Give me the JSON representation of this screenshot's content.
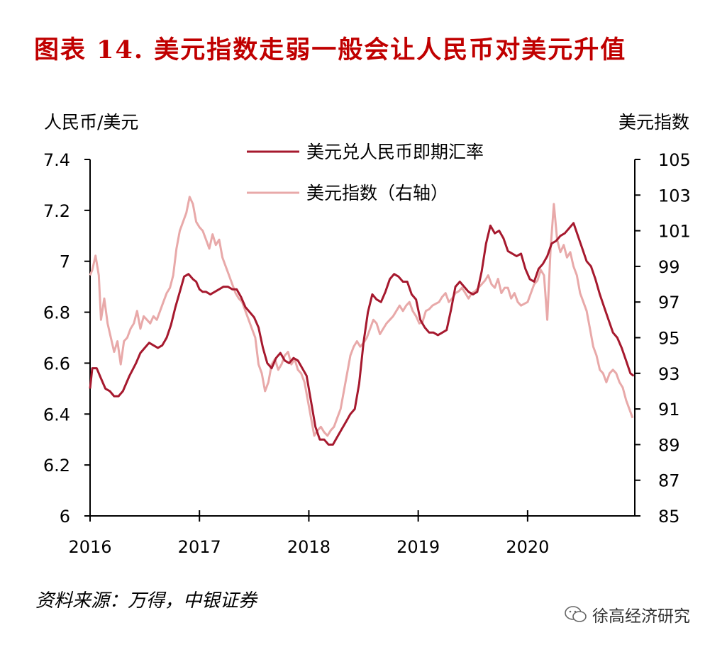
{
  "title": "图表 14.  美元指数走弱一般会让人民币对美元升值",
  "source": "资料来源：万得，中银证券",
  "brand": "徐高经济研究",
  "chart_data": {
    "type": "line",
    "ylabel_left": "人民币/美元",
    "ylabel_right": "美元指数",
    "ylim_left": [
      6,
      7.4
    ],
    "ylim_right": [
      85,
      105
    ],
    "yticks_left": [
      "7.4",
      "7.2",
      "7",
      "6.8",
      "6.6",
      "6.4",
      "6.2",
      "6"
    ],
    "yticks_right": [
      "105",
      "103",
      "101",
      "99",
      "97",
      "95",
      "93",
      "91",
      "89",
      "87",
      "85"
    ],
    "xlim": [
      2016.0,
      2020.98
    ],
    "xticks": [
      "2016",
      "2017",
      "2018",
      "2019",
      "2020"
    ],
    "grid": false,
    "legend_position": "top-center",
    "colors": {
      "cny": "#a6192e",
      "dxy": "#e8a9a9"
    },
    "series": [
      {
        "name": "美元兑人民币即期汇率",
        "axis": "left",
        "x": [
          2016.0,
          2016.02,
          2016.06,
          2016.1,
          2016.14,
          2016.18,
          2016.22,
          2016.26,
          2016.3,
          2016.36,
          2016.42,
          2016.46,
          2016.5,
          2016.54,
          2016.58,
          2016.62,
          2016.66,
          2016.7,
          2016.74,
          2016.78,
          2016.82,
          2016.86,
          2016.9,
          2016.94,
          2016.97,
          2017.0,
          2017.03,
          2017.06,
          2017.1,
          2017.14,
          2017.18,
          2017.22,
          2017.26,
          2017.3,
          2017.34,
          2017.38,
          2017.42,
          2017.46,
          2017.5,
          2017.54,
          2017.58,
          2017.62,
          2017.66,
          2017.7,
          2017.74,
          2017.78,
          2017.82,
          2017.86,
          2017.9,
          2017.94,
          2017.98,
          2018.02,
          2018.06,
          2018.1,
          2018.14,
          2018.18,
          2018.22,
          2018.26,
          2018.3,
          2018.34,
          2018.38,
          2018.42,
          2018.46,
          2018.5,
          2018.54,
          2018.58,
          2018.62,
          2018.66,
          2018.7,
          2018.74,
          2018.78,
          2018.82,
          2018.86,
          2018.9,
          2018.94,
          2018.98,
          2019.02,
          2019.06,
          2019.1,
          2019.14,
          2019.18,
          2019.22,
          2019.26,
          2019.3,
          2019.34,
          2019.38,
          2019.42,
          2019.46,
          2019.5,
          2019.54,
          2019.58,
          2019.62,
          2019.66,
          2019.7,
          2019.74,
          2019.78,
          2019.82,
          2019.86,
          2019.9,
          2019.94,
          2019.98,
          2020.02,
          2020.06,
          2020.1,
          2020.14,
          2020.18,
          2020.22,
          2020.26,
          2020.3,
          2020.34,
          2020.38,
          2020.42,
          2020.46,
          2020.5,
          2020.54,
          2020.58,
          2020.62,
          2020.66,
          2020.7,
          2020.74,
          2020.78,
          2020.82,
          2020.86,
          2020.9,
          2020.94,
          2020.97
        ],
        "values": [
          6.5,
          6.58,
          6.58,
          6.54,
          6.5,
          6.49,
          6.47,
          6.47,
          6.49,
          6.55,
          6.6,
          6.64,
          6.66,
          6.68,
          6.67,
          6.66,
          6.67,
          6.7,
          6.75,
          6.82,
          6.88,
          6.94,
          6.95,
          6.93,
          6.92,
          6.89,
          6.88,
          6.88,
          6.87,
          6.88,
          6.89,
          6.9,
          6.9,
          6.89,
          6.89,
          6.86,
          6.82,
          6.8,
          6.78,
          6.74,
          6.66,
          6.6,
          6.58,
          6.62,
          6.64,
          6.61,
          6.6,
          6.62,
          6.61,
          6.58,
          6.55,
          6.45,
          6.35,
          6.3,
          6.3,
          6.28,
          6.28,
          6.31,
          6.34,
          6.37,
          6.4,
          6.42,
          6.52,
          6.68,
          6.8,
          6.87,
          6.85,
          6.84,
          6.88,
          6.93,
          6.95,
          6.94,
          6.92,
          6.92,
          6.87,
          6.85,
          6.77,
          6.74,
          6.72,
          6.72,
          6.71,
          6.72,
          6.73,
          6.81,
          6.9,
          6.92,
          6.9,
          6.88,
          6.87,
          6.88,
          6.96,
          7.07,
          7.14,
          7.11,
          7.12,
          7.09,
          7.04,
          7.03,
          7.02,
          7.03,
          6.97,
          6.93,
          6.92,
          6.97,
          6.99,
          7.02,
          7.07,
          7.08,
          7.1,
          7.11,
          7.13,
          7.15,
          7.1,
          7.05,
          7.0,
          6.98,
          6.93,
          6.87,
          6.82,
          6.77,
          6.72,
          6.7,
          6.66,
          6.61,
          6.56,
          6.55
        ]
      },
      {
        "name": "美元指数（右轴）",
        "axis": "right",
        "x": [
          2016.0,
          2016.02,
          2016.05,
          2016.08,
          2016.1,
          2016.13,
          2016.16,
          2016.19,
          2016.22,
          2016.25,
          2016.28,
          2016.31,
          2016.34,
          2016.37,
          2016.4,
          2016.43,
          2016.46,
          2016.49,
          2016.52,
          2016.55,
          2016.58,
          2016.61,
          2016.64,
          2016.67,
          2016.7,
          2016.73,
          2016.76,
          2016.79,
          2016.82,
          2016.85,
          2016.88,
          2016.91,
          2016.94,
          2016.97,
          2017.0,
          2017.03,
          2017.06,
          2017.09,
          2017.12,
          2017.15,
          2017.18,
          2017.21,
          2017.24,
          2017.27,
          2017.3,
          2017.33,
          2017.36,
          2017.39,
          2017.42,
          2017.45,
          2017.48,
          2017.51,
          2017.54,
          2017.57,
          2017.6,
          2017.63,
          2017.66,
          2017.69,
          2017.72,
          2017.75,
          2017.78,
          2017.81,
          2017.84,
          2017.87,
          2017.9,
          2017.93,
          2017.96,
          2017.99,
          2018.02,
          2018.05,
          2018.08,
          2018.11,
          2018.14,
          2018.17,
          2018.2,
          2018.23,
          2018.26,
          2018.29,
          2018.32,
          2018.35,
          2018.38,
          2018.41,
          2018.44,
          2018.47,
          2018.5,
          2018.53,
          2018.56,
          2018.59,
          2018.62,
          2018.65,
          2018.68,
          2018.71,
          2018.74,
          2018.77,
          2018.8,
          2018.83,
          2018.86,
          2018.89,
          2018.92,
          2018.95,
          2018.98,
          2019.01,
          2019.04,
          2019.07,
          2019.1,
          2019.13,
          2019.16,
          2019.19,
          2019.22,
          2019.25,
          2019.28,
          2019.31,
          2019.34,
          2019.37,
          2019.4,
          2019.43,
          2019.46,
          2019.49,
          2019.52,
          2019.55,
          2019.58,
          2019.61,
          2019.64,
          2019.67,
          2019.7,
          2019.73,
          2019.76,
          2019.79,
          2019.82,
          2019.85,
          2019.88,
          2019.91,
          2019.94,
          2019.97,
          2020.0,
          2020.03,
          2020.06,
          2020.09,
          2020.12,
          2020.15,
          2020.18,
          2020.21,
          2020.24,
          2020.27,
          2020.3,
          2020.33,
          2020.36,
          2020.39,
          2020.42,
          2020.45,
          2020.48,
          2020.51,
          2020.54,
          2020.57,
          2020.6,
          2020.63,
          2020.66,
          2020.69,
          2020.72,
          2020.75,
          2020.78,
          2020.81,
          2020.84,
          2020.87,
          2020.9,
          2020.93,
          2020.96
        ],
        "values": [
          98.5,
          98.8,
          99.6,
          98.5,
          96.0,
          97.2,
          95.8,
          95.0,
          94.2,
          94.8,
          93.5,
          94.8,
          95.0,
          95.5,
          95.8,
          96.5,
          95.5,
          96.2,
          96.0,
          95.8,
          96.2,
          96.0,
          96.5,
          97.0,
          97.5,
          97.8,
          98.5,
          100.0,
          101.0,
          101.5,
          102.0,
          102.9,
          102.5,
          101.5,
          101.2,
          101.0,
          100.5,
          100.0,
          100.8,
          100.2,
          100.5,
          99.5,
          99.0,
          98.5,
          98.0,
          97.5,
          97.2,
          97.0,
          96.5,
          96.0,
          95.5,
          95.0,
          93.5,
          93.0,
          92.0,
          92.5,
          93.5,
          93.8,
          93.2,
          93.5,
          94.0,
          94.2,
          93.5,
          93.8,
          93.2,
          93.0,
          92.5,
          91.5,
          90.5,
          89.5,
          89.8,
          90.0,
          89.7,
          89.5,
          89.8,
          90.0,
          90.5,
          91.0,
          92.0,
          93.0,
          94.0,
          94.5,
          94.8,
          94.5,
          94.7,
          95.0,
          95.5,
          96.0,
          95.8,
          95.2,
          95.5,
          95.8,
          96.0,
          96.2,
          96.5,
          96.8,
          96.5,
          96.8,
          97.0,
          96.5,
          96.2,
          95.8,
          95.9,
          96.5,
          96.6,
          96.8,
          96.9,
          97.0,
          97.3,
          97.5,
          97.0,
          97.2,
          97.5,
          97.6,
          97.8,
          97.5,
          97.2,
          97.5,
          97.6,
          97.8,
          98.0,
          98.2,
          98.5,
          98.0,
          97.8,
          98.3,
          97.5,
          97.8,
          97.8,
          97.2,
          97.5,
          97.0,
          96.8,
          96.9,
          97.0,
          97.5,
          98.0,
          98.2,
          98.8,
          98.5,
          96.0,
          100.0,
          102.5,
          100.5,
          99.8,
          100.2,
          99.5,
          99.8,
          99.0,
          98.5,
          97.5,
          97.0,
          96.5,
          95.5,
          94.5,
          94.0,
          93.2,
          93.0,
          92.5,
          93.0,
          93.2,
          93.0,
          92.5,
          92.2,
          91.5,
          91.0,
          90.5
        ]
      }
    ]
  }
}
